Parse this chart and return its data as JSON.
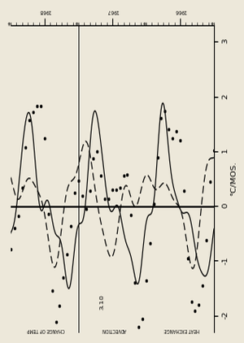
{
  "background_color": "#ede8da",
  "xlim": [
    -2.5,
    3.5
  ],
  "ylim": [
    0,
    36
  ],
  "xlabel": "°C/MOS.",
  "x_ticks": [
    -2,
    -1,
    0,
    1,
    2,
    3
  ],
  "x_tick_labels": [
    "-2",
    "-1",
    "0",
    "1",
    "2",
    "3"
  ],
  "years": [
    "1966",
    "1967",
    "1968"
  ],
  "months": [
    "J",
    "F",
    "M",
    "A",
    "M",
    "J",
    "J",
    "A",
    "S",
    "O",
    "N",
    "D"
  ],
  "annotation_31": "3.10",
  "label_heat": "HEAT EXCHANGE",
  "label_adv": "ADVECTION",
  "label_chg": "CHANGE OF TEMP"
}
